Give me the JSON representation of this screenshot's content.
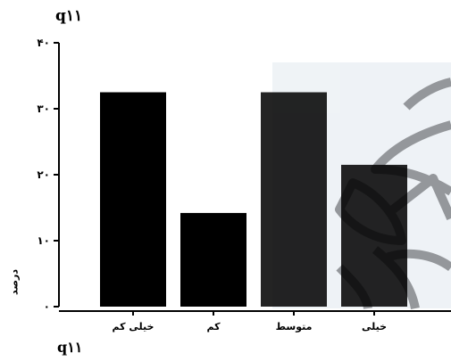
{
  "chart_data": {
    "type": "bar",
    "title": "q۱۱",
    "xlabel": "q۱۱",
    "ylabel": "درصد",
    "categories": [
      "خیلی کم",
      "کم",
      "متوسط",
      "خیلی"
    ],
    "values": [
      32.5,
      14.2,
      32.5,
      21.5
    ],
    "yticks": [
      0,
      10,
      20,
      30,
      40
    ],
    "ytick_labels": [
      "۰",
      "۱۰",
      "۲۰",
      "۳۰",
      "۴۰"
    ],
    "ylim": [
      0,
      40
    ],
    "grid": false,
    "bar_color": "#000000",
    "background_watermark": "decorative-emblem"
  }
}
